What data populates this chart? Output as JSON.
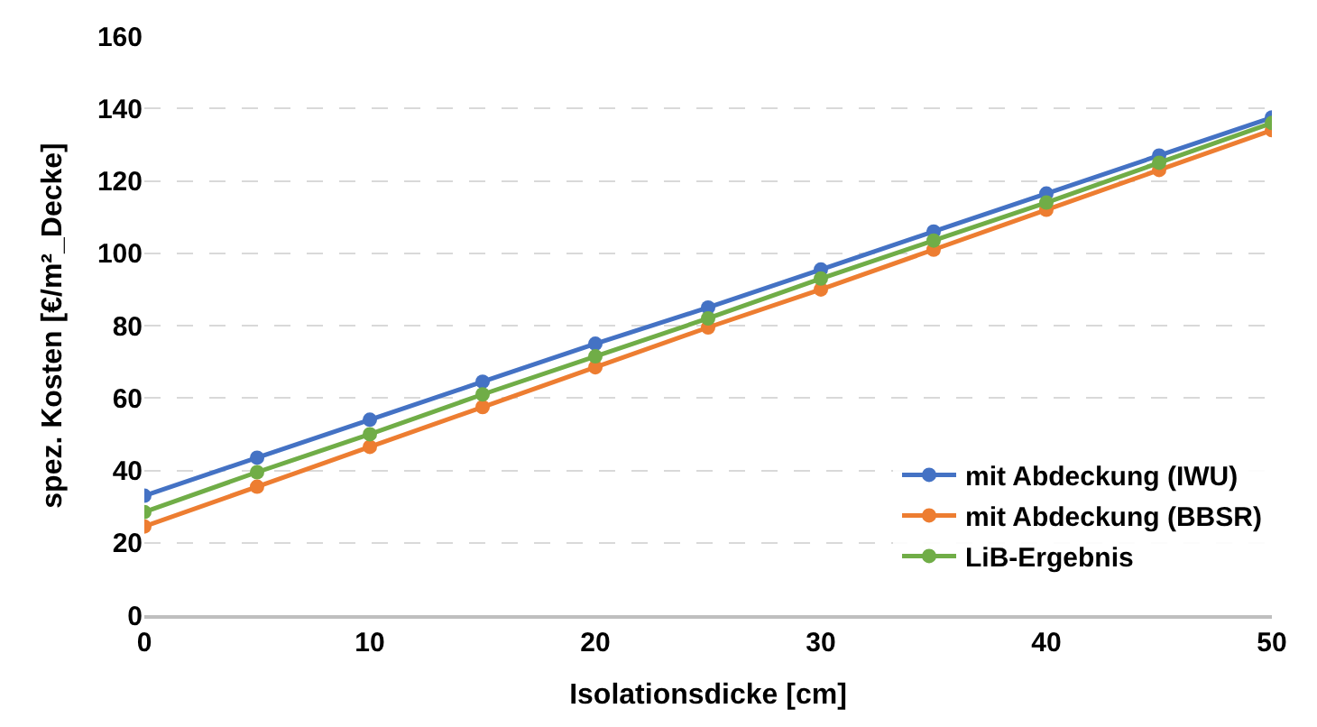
{
  "chart_data": {
    "type": "line",
    "xlabel": "Isolationsdicke [cm]",
    "ylabel": "spez. Kosten [€/m²_Decke]",
    "x": [
      0,
      5,
      10,
      15,
      20,
      25,
      30,
      35,
      40,
      45,
      50
    ],
    "series": [
      {
        "name": "mit Abdeckung (IWU)",
        "color": "#4472c4",
        "values": [
          33,
          43.5,
          54,
          64.5,
          75,
          85,
          95.5,
          106,
          116.5,
          127,
          137.5
        ]
      },
      {
        "name": "mit Abdeckung (BBSR)",
        "color": "#ed7d31",
        "values": [
          24.5,
          35.5,
          46.5,
          57.5,
          68.5,
          79.5,
          90,
          101,
          112,
          123,
          134
        ]
      },
      {
        "name": "LiB-Ergebnis",
        "color": "#70ad47",
        "values": [
          28.5,
          39.5,
          50,
          61,
          71.5,
          82,
          93,
          103.5,
          114,
          125,
          136
        ]
      }
    ],
    "xlim": [
      0,
      50
    ],
    "xticks": [
      0,
      10,
      20,
      30,
      40,
      50
    ],
    "ylim": [
      0,
      160
    ],
    "yticks": [
      0,
      20,
      40,
      60,
      80,
      100,
      120,
      140,
      160
    ],
    "grid": "y",
    "legend": "bottom right",
    "marker": "circle",
    "line_style": "solid"
  }
}
